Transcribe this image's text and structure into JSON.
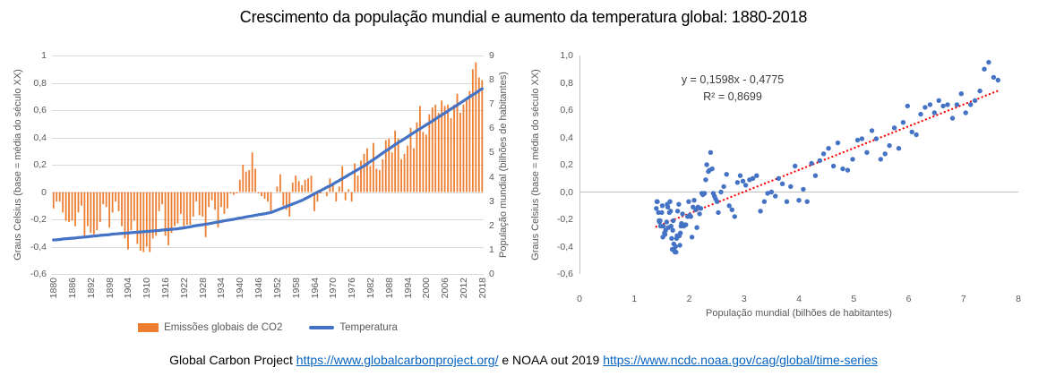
{
  "title": "Crescimento da população mundial e aumento da temperatura global: 1880-2018",
  "colors": {
    "bar": "#ED7D31",
    "line": "#4472C4",
    "dot": "#4472C4",
    "trend": "#FF0000",
    "grid": "#D9D9D9",
    "axis_line": "#BFBFBF",
    "axis_text": "#595959",
    "link": "#0563C1"
  },
  "footer": {
    "prefix": "Global Carbon Project",
    "link1": "https://www.globalcarbonproject.org/",
    "middle": "e NOAA out 2019",
    "link2": "https://www.ncdc.noaa.gov/cag/global/time-series"
  },
  "chart_data": [
    {
      "type": "bar+line",
      "ylabel_left": "Graus Celsius (base = média do século XX)",
      "ylabel_right": "População mundial (bilhões de habitantes)",
      "ylim_left": [
        -0.6,
        1.0
      ],
      "ylim_right": [
        0,
        9
      ],
      "ytick_labels_left": [
        "1",
        "0,8",
        "0,6",
        "0,4",
        "0,2",
        "0",
        "-0,2",
        "-0,4",
        "-0,6"
      ],
      "ytick_labels_right": [
        "9",
        "8",
        "7",
        "6",
        "5",
        "4",
        "3",
        "2",
        "1",
        "0"
      ],
      "xtick_labels": [
        "1880",
        "1886",
        "1892",
        "1898",
        "1904",
        "1910",
        "1916",
        "1922",
        "1928",
        "1934",
        "1940",
        "1946",
        "1952",
        "1958",
        "1964",
        "1970",
        "1976",
        "1982",
        "1988",
        "1994",
        "2000",
        "2006",
        "2012",
        "2018"
      ],
      "years": [
        1880,
        1881,
        1882,
        1883,
        1884,
        1885,
        1886,
        1887,
        1888,
        1889,
        1890,
        1891,
        1892,
        1893,
        1894,
        1895,
        1896,
        1897,
        1898,
        1899,
        1900,
        1901,
        1902,
        1903,
        1904,
        1905,
        1906,
        1907,
        1908,
        1909,
        1910,
        1911,
        1912,
        1913,
        1914,
        1915,
        1916,
        1917,
        1918,
        1919,
        1920,
        1921,
        1922,
        1923,
        1924,
        1925,
        1926,
        1927,
        1928,
        1929,
        1930,
        1931,
        1932,
        1933,
        1934,
        1935,
        1936,
        1937,
        1938,
        1939,
        1940,
        1941,
        1942,
        1943,
        1944,
        1945,
        1946,
        1947,
        1948,
        1949,
        1950,
        1951,
        1952,
        1953,
        1954,
        1955,
        1956,
        1957,
        1958,
        1959,
        1960,
        1961,
        1962,
        1963,
        1964,
        1965,
        1966,
        1967,
        1968,
        1969,
        1970,
        1971,
        1972,
        1973,
        1974,
        1975,
        1976,
        1977,
        1978,
        1979,
        1980,
        1981,
        1982,
        1983,
        1984,
        1985,
        1986,
        1987,
        1988,
        1989,
        1990,
        1991,
        1992,
        1993,
        1994,
        1995,
        1996,
        1997,
        1998,
        1999,
        2000,
        2001,
        2002,
        2003,
        2004,
        2005,
        2006,
        2007,
        2008,
        2009,
        2010,
        2011,
        2012,
        2013,
        2014,
        2015,
        2016,
        2017,
        2018
      ],
      "legend": [
        {
          "label": "Emissões globais de CO2",
          "marker": "bar",
          "color": "#ED7D31"
        },
        {
          "label": "Temperatura",
          "marker": "line",
          "color": "#4472C4"
        }
      ],
      "series": [
        {
          "name": "Emissões globais de CO2",
          "kind": "bar",
          "axis": "left",
          "color": "#ED7D31",
          "values": [
            -0.12,
            -0.07,
            -0.07,
            -0.15,
            -0.21,
            -0.22,
            -0.21,
            -0.25,
            -0.15,
            -0.1,
            -0.33,
            -0.25,
            -0.3,
            -0.31,
            -0.28,
            -0.22,
            -0.09,
            -0.11,
            -0.26,
            -0.15,
            -0.07,
            -0.14,
            -0.25,
            -0.34,
            -0.42,
            -0.28,
            -0.21,
            -0.38,
            -0.43,
            -0.44,
            -0.4,
            -0.44,
            -0.34,
            -0.32,
            -0.14,
            -0.09,
            -0.32,
            -0.39,
            -0.3,
            -0.25,
            -0.23,
            -0.16,
            -0.25,
            -0.24,
            -0.24,
            -0.18,
            -0.07,
            -0.17,
            -0.18,
            -0.33,
            -0.11,
            -0.06,
            -0.13,
            -0.26,
            -0.11,
            -0.16,
            -0.12,
            -0.01,
            -0.02,
            -0.01,
            0.09,
            0.2,
            0.15,
            0.16,
            0.29,
            0.17,
            -0.01,
            -0.03,
            -0.05,
            -0.07,
            -0.15,
            0.0,
            0.04,
            0.13,
            -0.1,
            -0.13,
            -0.18,
            0.07,
            0.12,
            0.08,
            0.05,
            0.09,
            0.1,
            0.12,
            -0.14,
            -0.07,
            -0.01,
            0.0,
            -0.03,
            0.1,
            0.06,
            -0.07,
            0.04,
            0.19,
            -0.06,
            0.02,
            -0.07,
            0.21,
            0.12,
            0.23,
            0.28,
            0.32,
            0.19,
            0.36,
            0.17,
            0.16,
            0.24,
            0.38,
            0.39,
            0.29,
            0.45,
            0.39,
            0.24,
            0.28,
            0.34,
            0.47,
            0.32,
            0.51,
            0.63,
            0.44,
            0.42,
            0.57,
            0.62,
            0.64,
            0.58,
            0.67,
            0.63,
            0.64,
            0.54,
            0.64,
            0.72,
            0.58,
            0.64,
            0.67,
            0.74,
            0.9,
            0.95,
            0.84,
            0.82
          ]
        },
        {
          "name": "Temperatura",
          "kind": "line",
          "axis": "right",
          "color": "#4472C4",
          "values": [
            1.4,
            1.41,
            1.42,
            1.44,
            1.45,
            1.46,
            1.47,
            1.48,
            1.5,
            1.51,
            1.52,
            1.53,
            1.55,
            1.56,
            1.57,
            1.59,
            1.6,
            1.61,
            1.62,
            1.64,
            1.65,
            1.66,
            1.67,
            1.68,
            1.69,
            1.7,
            1.71,
            1.72,
            1.73,
            1.74,
            1.75,
            1.76,
            1.77,
            1.78,
            1.79,
            1.81,
            1.82,
            1.83,
            1.84,
            1.85,
            1.86,
            1.88,
            1.9,
            1.92,
            1.94,
            1.97,
            1.99,
            2.01,
            2.03,
            2.05,
            2.07,
            2.09,
            2.12,
            2.14,
            2.16,
            2.19,
            2.21,
            2.23,
            2.25,
            2.28,
            2.3,
            2.32,
            2.35,
            2.37,
            2.39,
            2.42,
            2.44,
            2.46,
            2.48,
            2.51,
            2.53,
            2.58,
            2.63,
            2.68,
            2.73,
            2.78,
            2.83,
            2.88,
            2.93,
            2.98,
            3.03,
            3.1,
            3.16,
            3.23,
            3.3,
            3.37,
            3.43,
            3.5,
            3.57,
            3.63,
            3.7,
            3.78,
            3.85,
            3.93,
            4.0,
            4.08,
            4.15,
            4.23,
            4.3,
            4.38,
            4.45,
            4.54,
            4.63,
            4.71,
            4.8,
            4.89,
            4.98,
            5.07,
            5.15,
            5.24,
            5.33,
            5.41,
            5.49,
            5.57,
            5.65,
            5.74,
            5.82,
            5.9,
            5.98,
            6.06,
            6.14,
            6.22,
            6.3,
            6.39,
            6.47,
            6.55,
            6.63,
            6.71,
            6.8,
            6.88,
            6.96,
            7.04,
            7.13,
            7.21,
            7.3,
            7.38,
            7.46,
            7.55,
            7.63
          ]
        }
      ]
    },
    {
      "type": "scatter",
      "xlabel": "População mundial (bilhões de habitantes)",
      "ylabel": "Graus Celsius (base = média do século XX)",
      "xlim": [
        0,
        8
      ],
      "ylim": [
        -0.6,
        1.0
      ],
      "xtick_labels": [
        "0",
        "1",
        "2",
        "3",
        "4",
        "5",
        "6",
        "7",
        "8"
      ],
      "ytick_labels": [
        "1,0",
        "0,8",
        "0,6",
        "0,4",
        "0,2",
        "0,0",
        "-0,2",
        "-0,4",
        "-0,6"
      ],
      "point_color": "#4472C4",
      "x": [
        1.4,
        1.41,
        1.42,
        1.44,
        1.45,
        1.46,
        1.47,
        1.48,
        1.5,
        1.51,
        1.52,
        1.53,
        1.55,
        1.56,
        1.57,
        1.59,
        1.6,
        1.61,
        1.62,
        1.64,
        1.65,
        1.66,
        1.67,
        1.68,
        1.69,
        1.7,
        1.71,
        1.72,
        1.73,
        1.74,
        1.75,
        1.76,
        1.77,
        1.78,
        1.79,
        1.81,
        1.82,
        1.83,
        1.84,
        1.85,
        1.86,
        1.88,
        1.9,
        1.92,
        1.94,
        1.97,
        1.99,
        2.01,
        2.03,
        2.05,
        2.07,
        2.09,
        2.12,
        2.14,
        2.16,
        2.19,
        2.21,
        2.23,
        2.25,
        2.28,
        2.3,
        2.32,
        2.35,
        2.37,
        2.39,
        2.42,
        2.44,
        2.46,
        2.48,
        2.51,
        2.53,
        2.58,
        2.63,
        2.68,
        2.73,
        2.78,
        2.83,
        2.88,
        2.93,
        2.98,
        3.03,
        3.1,
        3.16,
        3.23,
        3.3,
        3.37,
        3.43,
        3.5,
        3.57,
        3.63,
        3.7,
        3.78,
        3.85,
        3.93,
        4.0,
        4.08,
        4.15,
        4.23,
        4.3,
        4.38,
        4.45,
        4.54,
        4.63,
        4.71,
        4.8,
        4.89,
        4.98,
        5.07,
        5.15,
        5.24,
        5.33,
        5.41,
        5.49,
        5.57,
        5.65,
        5.74,
        5.82,
        5.9,
        5.98,
        6.06,
        6.14,
        6.22,
        6.3,
        6.39,
        6.47,
        6.55,
        6.63,
        6.71,
        6.8,
        6.88,
        6.96,
        7.04,
        7.13,
        7.21,
        7.3,
        7.38,
        7.46,
        7.55,
        7.63
      ],
      "y": [
        -0.12,
        -0.07,
        -0.07,
        -0.15,
        -0.21,
        -0.22,
        -0.21,
        -0.25,
        -0.15,
        -0.1,
        -0.33,
        -0.25,
        -0.3,
        -0.31,
        -0.28,
        -0.22,
        -0.09,
        -0.11,
        -0.26,
        -0.15,
        -0.07,
        -0.14,
        -0.25,
        -0.34,
        -0.42,
        -0.28,
        -0.21,
        -0.38,
        -0.43,
        -0.44,
        -0.4,
        -0.44,
        -0.34,
        -0.32,
        -0.14,
        -0.09,
        -0.32,
        -0.39,
        -0.3,
        -0.25,
        -0.23,
        -0.16,
        -0.25,
        -0.24,
        -0.24,
        -0.18,
        -0.07,
        -0.17,
        -0.18,
        -0.33,
        -0.11,
        -0.06,
        -0.13,
        -0.26,
        -0.11,
        -0.16,
        -0.12,
        -0.01,
        -0.02,
        -0.01,
        0.09,
        0.2,
        0.15,
        0.16,
        0.29,
        0.17,
        -0.01,
        -0.03,
        -0.05,
        -0.07,
        -0.15,
        0.0,
        0.04,
        0.13,
        -0.1,
        -0.13,
        -0.18,
        0.07,
        0.12,
        0.08,
        0.05,
        0.09,
        0.1,
        0.12,
        -0.14,
        -0.07,
        -0.01,
        0.0,
        -0.03,
        0.1,
        0.06,
        -0.07,
        0.04,
        0.19,
        -0.06,
        0.02,
        -0.07,
        0.21,
        0.12,
        0.23,
        0.28,
        0.32,
        0.19,
        0.36,
        0.17,
        0.16,
        0.24,
        0.38,
        0.39,
        0.29,
        0.45,
        0.39,
        0.24,
        0.28,
        0.34,
        0.47,
        0.32,
        0.51,
        0.63,
        0.44,
        0.42,
        0.57,
        0.62,
        0.64,
        0.58,
        0.67,
        0.63,
        0.64,
        0.54,
        0.64,
        0.72,
        0.58,
        0.64,
        0.67,
        0.74,
        0.9,
        0.95,
        0.84,
        0.82
      ],
      "trendline": {
        "equation_label": "y = 0,1598x - 0,4775",
        "r2_label": "R² = 0,8699",
        "slope": 0.1598,
        "intercept": -0.4775,
        "x_start": 1.4,
        "x_end": 7.63,
        "color": "#FF0000",
        "style": "dotted"
      }
    }
  ]
}
